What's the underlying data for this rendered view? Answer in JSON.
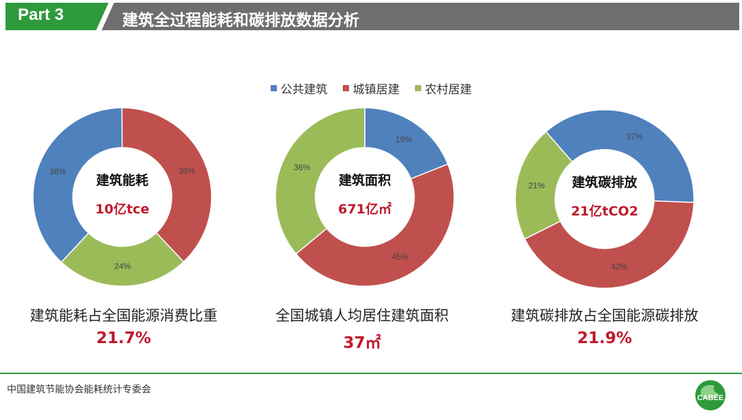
{
  "header": {
    "part_label": "Part 3",
    "title": "建筑全过程能耗和碳排放数据分析"
  },
  "legend": [
    {
      "label": "公共建筑",
      "color": "#4f81bd"
    },
    {
      "label": "城镇居建",
      "color": "#c0504d"
    },
    {
      "label": "农村居建",
      "color": "#9bbb59"
    }
  ],
  "chart_data": [
    {
      "type": "pie",
      "donut": true,
      "center_title": "建筑能耗",
      "center_value": "10亿tce",
      "slices": [
        {
          "name": "公共建筑",
          "value": 38,
          "label": "38%"
        },
        {
          "name": "城镇居建",
          "value": 38,
          "label": "38%"
        },
        {
          "name": "农村居建",
          "value": 24,
          "label": "24%"
        }
      ],
      "caption": "建筑能耗占全国能源消费比重",
      "caption_value": "21.7%"
    },
    {
      "type": "pie",
      "donut": true,
      "center_title": "建筑面积",
      "center_value": "671亿㎡",
      "slices": [
        {
          "name": "公共建筑",
          "value": 19,
          "label": "19%"
        },
        {
          "name": "城镇居建",
          "value": 45,
          "label": "45%"
        },
        {
          "name": "农村居建",
          "value": 36,
          "label": "36%"
        }
      ],
      "caption": "全国城镇人均居住建筑面积",
      "caption_value": "37㎡"
    },
    {
      "type": "pie",
      "donut": true,
      "center_title": "建筑碳排放",
      "center_value": "21亿tCO2",
      "slices": [
        {
          "name": "公共建筑",
          "value": 37,
          "label": "37%"
        },
        {
          "name": "城镇居建",
          "value": 42,
          "label": "42%"
        },
        {
          "name": "农村居建",
          "value": 21,
          "label": "21%"
        }
      ],
      "caption": "建筑碳排放占全国能源碳排放",
      "caption_value": "21.9%"
    }
  ],
  "footer": {
    "org": "中国建筑节能协会能耗统计专委会",
    "logo_text": "CABEE"
  },
  "colors": {
    "brand_green": "#2e9a3c",
    "header_gray": "#6e6e6e",
    "value_red": "#c0192b"
  }
}
